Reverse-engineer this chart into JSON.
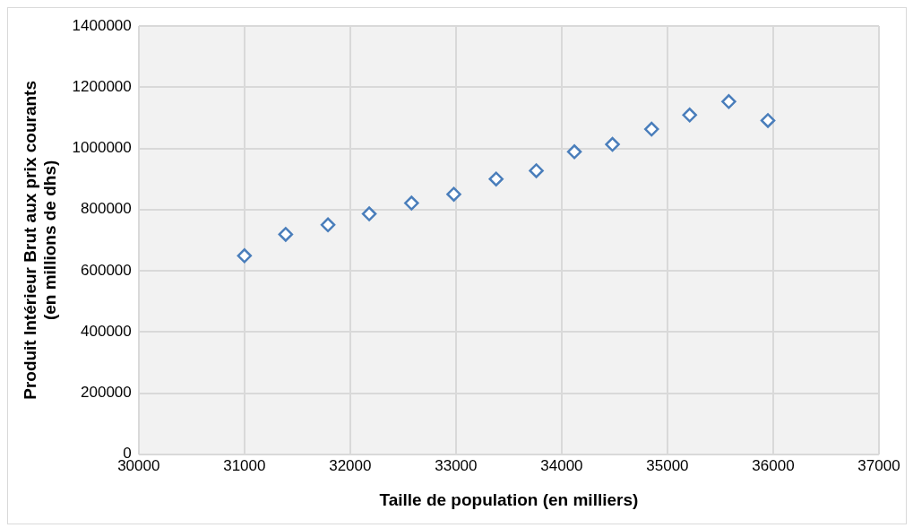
{
  "chart_data": {
    "type": "scatter",
    "xlabel": "Taille de population (en milliers)",
    "ylabel": "Produit Intérieur Brut aux prix courants (en millions de dhs)",
    "x": [
      31000,
      31390,
      31790,
      32180,
      32580,
      32980,
      33380,
      33760,
      34120,
      34480,
      34850,
      35210,
      35580,
      35950
    ],
    "series": [
      {
        "color": "#4a7ebb",
        "values": [
          649000,
          719000,
          750000,
          786000,
          821000,
          850000,
          900000,
          927000,
          989000,
          1013000,
          1063000,
          1109000,
          1153000,
          1091000
        ]
      }
    ],
    "xlim": [
      30000,
      37000
    ],
    "xticks": [
      30000,
      31000,
      32000,
      33000,
      34000,
      35000,
      36000,
      37000
    ],
    "ylim": [
      0,
      1400000
    ],
    "yticks": [
      0,
      200000,
      400000,
      600000,
      800000,
      1000000,
      1200000,
      1400000
    ],
    "grid": true,
    "legend": false,
    "marker": "diamond"
  }
}
